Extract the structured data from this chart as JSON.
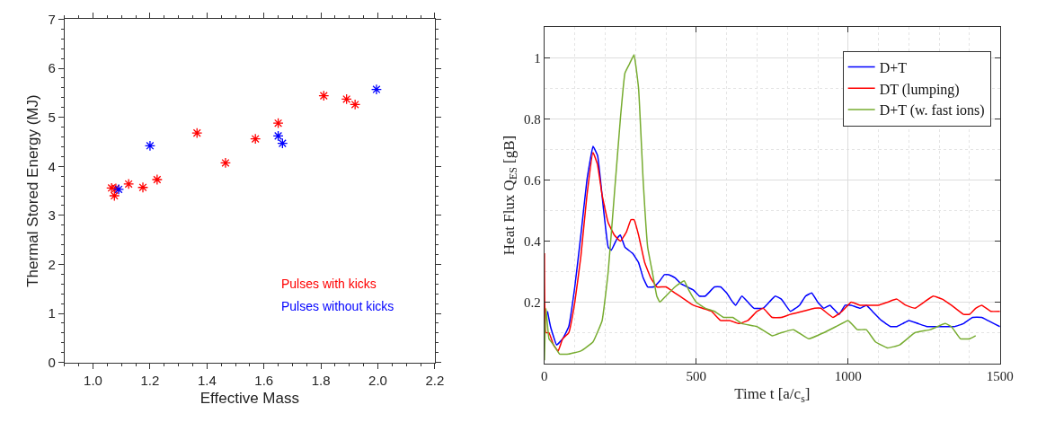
{
  "chart_data": [
    {
      "type": "scatter",
      "xlabel": "Effective Mass",
      "ylabel": "Thermal Stored Energy (MJ)",
      "xlim": [
        0.9,
        2.2
      ],
      "ylim": [
        0,
        7
      ],
      "xticks": [
        {
          "value": 1.0,
          "label": "1.0"
        },
        1.2,
        1.4,
        1.6,
        1.8,
        {
          "value": 2.0,
          "label": "2.0"
        },
        2.2
      ],
      "yticks": [
        0,
        1,
        2,
        3,
        4,
        5,
        6,
        7
      ],
      "marker": "cross",
      "grid": false,
      "legend": "bottom right",
      "series": [
        {
          "name": "Pulses with kicks",
          "color": "#ff0000",
          "x": [
            1.065,
            1.075,
            1.08,
            1.125,
            1.175,
            1.225,
            1.365,
            1.465,
            1.57,
            1.65,
            1.81,
            1.89,
            1.92
          ],
          "values": [
            3.56,
            3.4,
            3.55,
            3.64,
            3.57,
            3.73,
            4.68,
            4.07,
            4.56,
            4.88,
            5.44,
            5.37,
            5.26
          ]
        },
        {
          "name": "Pulses without kicks",
          "color": "#0000ff",
          "x": [
            1.09,
            1.2,
            1.65,
            1.665,
            1.995
          ],
          "values": [
            3.53,
            4.42,
            4.62,
            4.47,
            5.57
          ]
        }
      ]
    },
    {
      "type": "line",
      "xlabel": "Time t [a/c$_{s}$]",
      "ylabel": "Heat Flux Q$_{ES}$ [gB]",
      "xlim": [
        0,
        1500
      ],
      "ylim": [
        0,
        1.1
      ],
      "xticks": [
        0,
        500,
        1000,
        1500
      ],
      "yticks": [
        0.2,
        0.4,
        0.6,
        0.8,
        1
      ],
      "grid": true,
      "legend": "top right",
      "line_style": "solid",
      "marker": "none",
      "series": [
        {
          "name": "D+T",
          "color": "#0000ff",
          "x": [
            10,
            20,
            40,
            60,
            80,
            100,
            120,
            140,
            160,
            175,
            195,
            210,
            220,
            240,
            250,
            265,
            290,
            310,
            325,
            340,
            360,
            380,
            395,
            410,
            430,
            450,
            470,
            490,
            510,
            530,
            560,
            580,
            600,
            620,
            630,
            650,
            670,
            690,
            720,
            740,
            760,
            780,
            810,
            840,
            860,
            880,
            900,
            920,
            940,
            970,
            990,
            1010,
            1040,
            1060,
            1080,
            1110,
            1140,
            1160,
            1180,
            1200,
            1230,
            1260,
            1290,
            1320,
            1350,
            1380,
            1410,
            1440,
            1460,
            1480,
            1500
          ],
          "values": [
            0.17,
            0.12,
            0.06,
            0.08,
            0.12,
            0.25,
            0.42,
            0.6,
            0.71,
            0.68,
            0.5,
            0.38,
            0.37,
            0.41,
            0.42,
            0.38,
            0.36,
            0.33,
            0.28,
            0.25,
            0.25,
            0.27,
            0.29,
            0.29,
            0.28,
            0.26,
            0.25,
            0.24,
            0.22,
            0.22,
            0.25,
            0.25,
            0.23,
            0.2,
            0.19,
            0.22,
            0.2,
            0.18,
            0.18,
            0.2,
            0.22,
            0.21,
            0.17,
            0.19,
            0.22,
            0.23,
            0.2,
            0.18,
            0.19,
            0.16,
            0.19,
            0.19,
            0.18,
            0.19,
            0.17,
            0.14,
            0.12,
            0.12,
            0.13,
            0.14,
            0.13,
            0.12,
            0.12,
            0.12,
            0.12,
            0.13,
            0.15,
            0.15,
            0.14,
            0.13,
            0.12
          ]
        },
        {
          "name": "DT (lumping)",
          "color": "#ff0000",
          "x": [
            0,
            5,
            15,
            30,
            45,
            60,
            80,
            100,
            120,
            140,
            160,
            175,
            190,
            210,
            230,
            250,
            270,
            285,
            295,
            310,
            330,
            350,
            370,
            400,
            430,
            460,
            490,
            520,
            550,
            580,
            610,
            640,
            670,
            700,
            720,
            750,
            780,
            810,
            850,
            890,
            910,
            950,
            980,
            1010,
            1040,
            1070,
            1100,
            1130,
            1160,
            1190,
            1220,
            1250,
            1280,
            1310,
            1340,
            1380,
            1400,
            1420,
            1440,
            1470,
            1500
          ],
          "values": [
            0.36,
            0.1,
            0.1,
            0.06,
            0.04,
            0.08,
            0.1,
            0.2,
            0.35,
            0.55,
            0.69,
            0.65,
            0.55,
            0.46,
            0.42,
            0.4,
            0.43,
            0.47,
            0.47,
            0.42,
            0.33,
            0.28,
            0.25,
            0.25,
            0.23,
            0.21,
            0.19,
            0.18,
            0.17,
            0.14,
            0.14,
            0.13,
            0.14,
            0.17,
            0.18,
            0.15,
            0.15,
            0.16,
            0.17,
            0.18,
            0.18,
            0.15,
            0.17,
            0.2,
            0.19,
            0.19,
            0.19,
            0.2,
            0.21,
            0.19,
            0.18,
            0.2,
            0.22,
            0.21,
            0.19,
            0.16,
            0.16,
            0.18,
            0.19,
            0.17,
            0.17
          ]
        },
        {
          "name": "D+T (w. fast ions)",
          "color": "#77ac30",
          "x": [
            0,
            5,
            15,
            30,
            50,
            80,
            120,
            160,
            190,
            210,
            230,
            250,
            265,
            280,
            295,
            310,
            325,
            340,
            355,
            370,
            380,
            400,
            430,
            460,
            475,
            500,
            530,
            560,
            590,
            620,
            650,
            700,
            750,
            780,
            820,
            870,
            920,
            960,
            1000,
            1030,
            1060,
            1090,
            1130,
            1170,
            1220,
            1270,
            1320,
            1340,
            1370,
            1400,
            1420
          ],
          "values": [
            0.01,
            0.18,
            0.08,
            0.06,
            0.03,
            0.03,
            0.04,
            0.07,
            0.14,
            0.3,
            0.55,
            0.8,
            0.95,
            0.98,
            1.01,
            0.9,
            0.6,
            0.38,
            0.3,
            0.22,
            0.2,
            0.22,
            0.25,
            0.27,
            0.24,
            0.2,
            0.18,
            0.17,
            0.15,
            0.15,
            0.13,
            0.12,
            0.09,
            0.1,
            0.11,
            0.08,
            0.1,
            0.12,
            0.14,
            0.11,
            0.11,
            0.07,
            0.05,
            0.06,
            0.1,
            0.11,
            0.13,
            0.12,
            0.08,
            0.08,
            0.09
          ]
        }
      ]
    }
  ]
}
